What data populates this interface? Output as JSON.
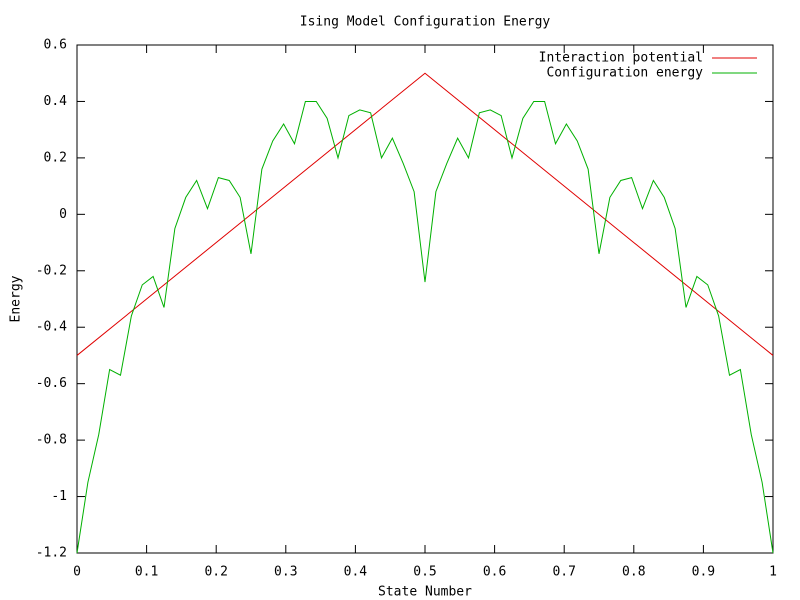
{
  "chart_data": {
    "type": "line",
    "title": "Ising Model Configuration Energy",
    "x_label": "State Number",
    "y_label": "Energy",
    "xlim": [
      0,
      1
    ],
    "ylim": [
      -1.2,
      0.6
    ],
    "xticks": [
      0,
      0.1,
      0.2,
      0.3,
      0.4,
      0.5,
      0.6,
      0.7,
      0.8,
      0.9,
      1
    ],
    "yticks": [
      0.6,
      0.4,
      0.2,
      0,
      -0.2,
      -0.4,
      -0.6,
      -0.8,
      -1,
      -1.2
    ],
    "legend": "top-right",
    "series": [
      {
        "name": "Interaction potential",
        "color": "#e00000",
        "x": [
          0,
          0.5,
          1
        ],
        "values": [
          -0.5,
          0.5,
          -0.5
        ]
      },
      {
        "name": "Configuration energy",
        "color": "#00b000",
        "x": [
          0,
          0.015625,
          0.03125,
          0.046875,
          0.0625,
          0.078125,
          0.09375,
          0.109375,
          0.125,
          0.140625,
          0.15625,
          0.171875,
          0.1875,
          0.203125,
          0.21875,
          0.234375,
          0.25,
          0.265625,
          0.28125,
          0.296875,
          0.3125,
          0.328125,
          0.34375,
          0.359375,
          0.375,
          0.390625,
          0.40625,
          0.421875,
          0.4375,
          0.453125,
          0.46875,
          0.484375,
          0.5,
          0.515625,
          0.53125,
          0.546875,
          0.5625,
          0.578125,
          0.59375,
          0.609375,
          0.625,
          0.640625,
          0.65625,
          0.671875,
          0.6875,
          0.703125,
          0.71875,
          0.734375,
          0.75,
          0.765625,
          0.78125,
          0.796875,
          0.8125,
          0.828125,
          0.84375,
          0.859375,
          0.875,
          0.890625,
          0.90625,
          0.921875,
          0.9375,
          0.953125,
          0.96875,
          0.984375,
          1
        ],
        "values": [
          -1.2,
          -0.95,
          -0.78,
          -0.55,
          -0.57,
          -0.36,
          -0.25,
          -0.22,
          -0.33,
          -0.05,
          0.06,
          0.12,
          0.02,
          0.13,
          0.12,
          0.06,
          -0.14,
          0.16,
          0.26,
          0.32,
          0.25,
          0.4,
          0.4,
          0.34,
          0.2,
          0.35,
          0.37,
          0.36,
          0.2,
          0.27,
          0.18,
          0.08,
          -0.24,
          0.08,
          0.18,
          0.27,
          0.2,
          0.36,
          0.37,
          0.35,
          0.2,
          0.34,
          0.4,
          0.4,
          0.25,
          0.32,
          0.26,
          0.16,
          -0.14,
          0.06,
          0.12,
          0.13,
          0.02,
          0.12,
          0.06,
          -0.05,
          -0.33,
          -0.22,
          -0.25,
          -0.36,
          -0.57,
          -0.55,
          -0.78,
          -0.95,
          -1.2
        ]
      }
    ]
  }
}
